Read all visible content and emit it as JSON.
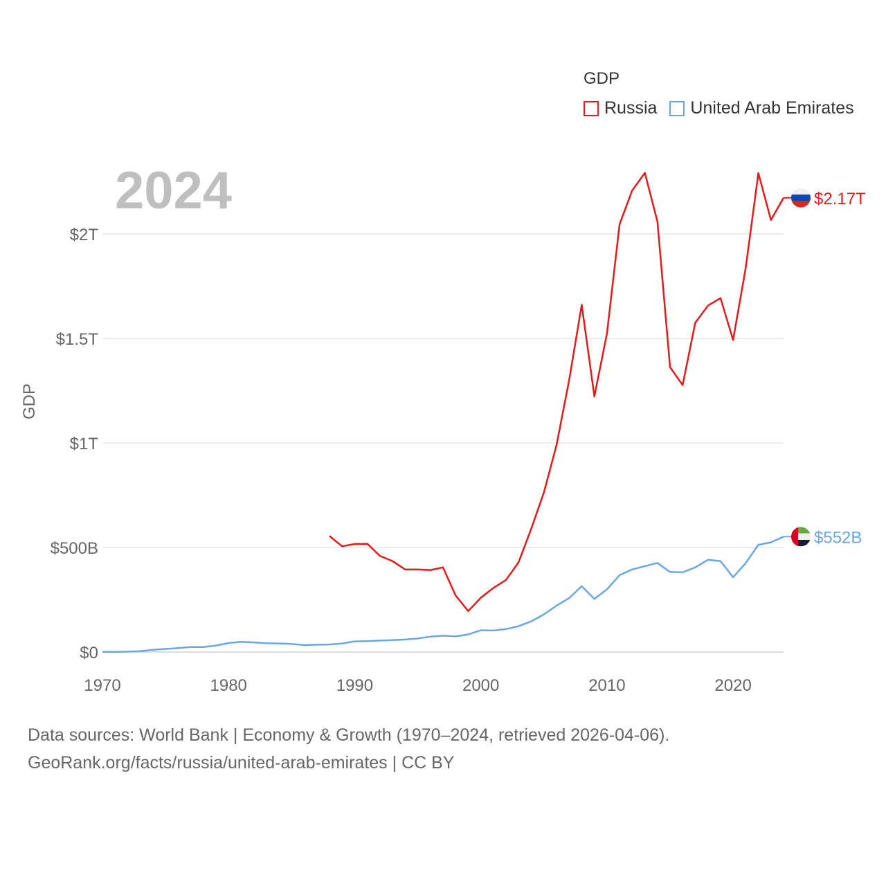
{
  "legend": {
    "title": "GDP",
    "items": [
      {
        "label": "Russia",
        "color": "#e8191b"
      },
      {
        "label": "United Arab Emirates",
        "color": "#6aa6e4"
      }
    ]
  },
  "current_year": "2024",
  "source_line1": "Data sources: World Bank | Economy & Growth (1970–2024, retrieved 2026-04-06).",
  "source_line2": "GeoRank.org/facts/russia/united-arab-emirates | CC BY",
  "chart_data": {
    "type": "line",
    "title": "",
    "xlabel": "",
    "ylabel": "GDP",
    "xlim": [
      1970,
      2024
    ],
    "ylim": [
      0,
      2300
    ],
    "y_unit": "billion USD",
    "x_ticks": [
      1970,
      1980,
      1990,
      2000,
      2010,
      2020
    ],
    "y_ticks": [
      {
        "value": 0,
        "label": "$0"
      },
      {
        "value": 500,
        "label": "$500B"
      },
      {
        "value": 1000,
        "label": "$1T"
      },
      {
        "value": 1500,
        "label": "$1.5T"
      },
      {
        "value": 2000,
        "label": "$2T"
      }
    ],
    "grid": true,
    "series": [
      {
        "name": "Russia",
        "color": "#e8191b",
        "end_label": "$2.17T",
        "flag": "russia-flag",
        "x": [
          1988,
          1989,
          1990,
          1991,
          1992,
          1993,
          1994,
          1995,
          1996,
          1997,
          1998,
          1999,
          2000,
          2001,
          2002,
          2003,
          2004,
          2005,
          2006,
          2007,
          2008,
          2009,
          2010,
          2011,
          2012,
          2013,
          2014,
          2015,
          2016,
          2017,
          2018,
          2019,
          2020,
          2021,
          2022,
          2023,
          2024
        ],
        "values": [
          555,
          506,
          517,
          518,
          460,
          435,
          395,
          395,
          392,
          405,
          271,
          196,
          260,
          307,
          345,
          430,
          591,
          764,
          990,
          1300,
          1661,
          1223,
          1525,
          2046,
          2208,
          2292,
          2059,
          1363,
          1277,
          1575,
          1657,
          1693,
          1493,
          1837,
          2291,
          2067,
          2173
        ]
      },
      {
        "name": "United Arab Emirates",
        "color": "#6aa6e4",
        "end_label": "$552B",
        "flag": "uae-flag",
        "x": [
          1970,
          1971,
          1972,
          1973,
          1974,
          1975,
          1976,
          1977,
          1978,
          1979,
          1980,
          1981,
          1982,
          1983,
          1984,
          1985,
          1986,
          1987,
          1988,
          1989,
          1990,
          1991,
          1992,
          1993,
          1994,
          1995,
          1996,
          1997,
          1998,
          1999,
          2000,
          2001,
          2002,
          2003,
          2004,
          2005,
          2006,
          2007,
          2008,
          2009,
          2010,
          2011,
          2012,
          2013,
          2014,
          2015,
          2016,
          2017,
          2018,
          2019,
          2020,
          2021,
          2022,
          2023,
          2024
        ],
        "values": [
          1,
          1,
          2,
          4,
          11,
          15,
          19,
          24,
          24,
          31,
          43,
          49,
          46,
          42,
          41,
          39,
          33,
          35,
          36,
          41,
          51,
          52,
          55,
          57,
          60,
          65,
          74,
          78,
          75,
          84,
          104,
          103,
          110,
          124,
          147,
          180,
          222,
          258,
          315,
          254,
          300,
          368,
          395,
          411,
          426,
          383,
          381,
          405,
          441,
          435,
          358,
          425,
          513,
          525,
          552
        ]
      }
    ]
  }
}
